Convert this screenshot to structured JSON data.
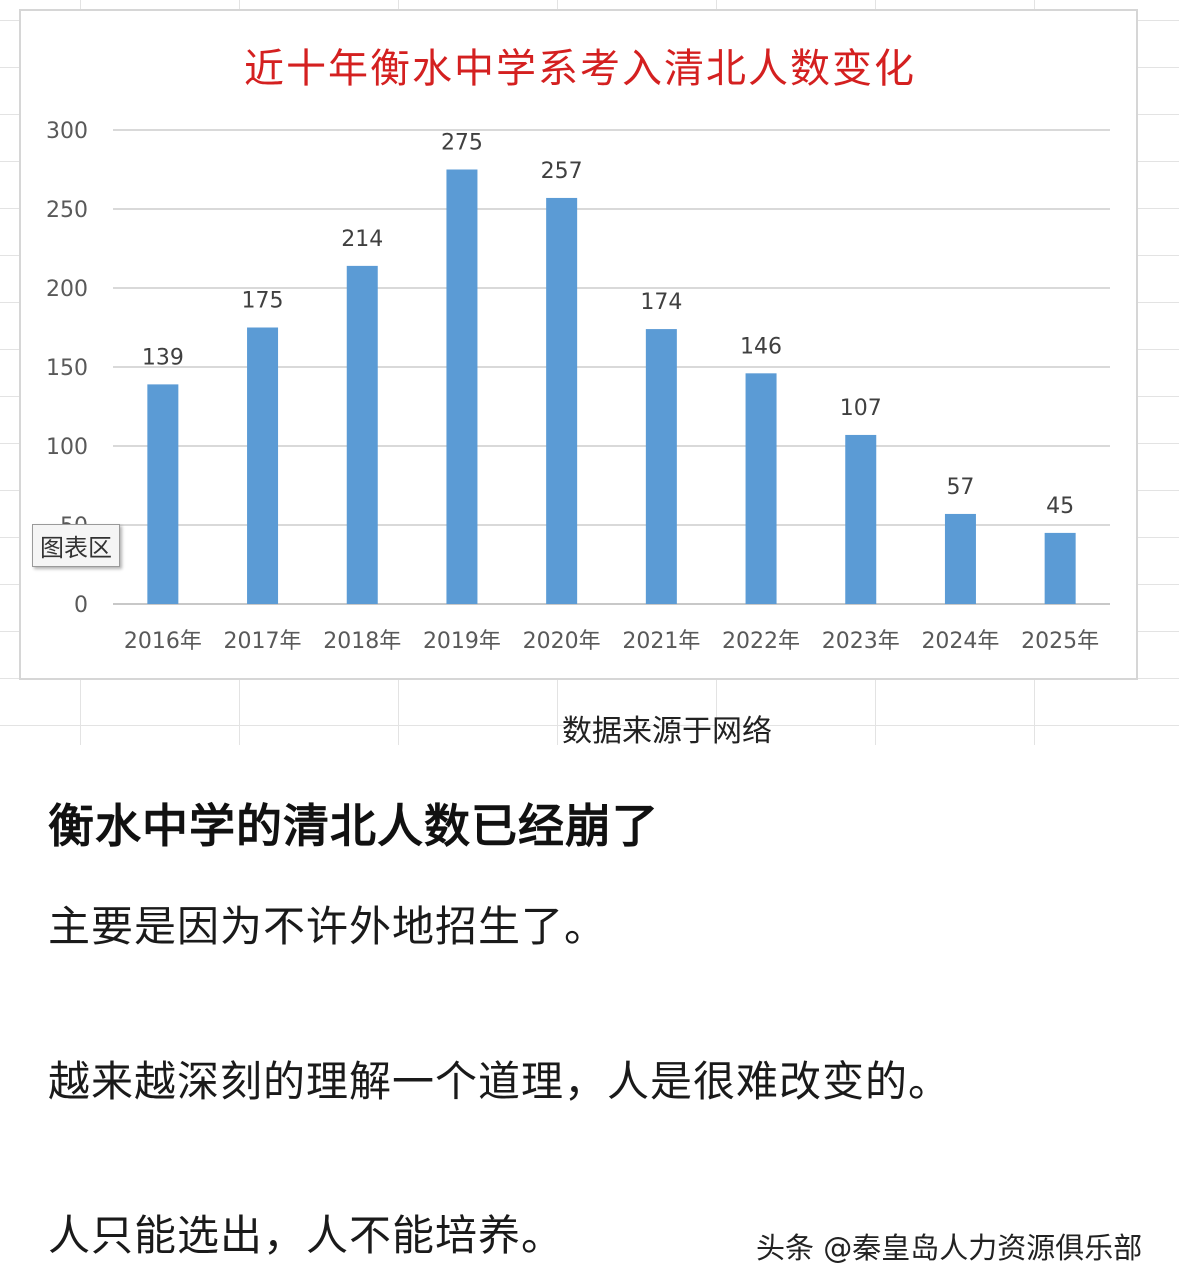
{
  "chart_data": {
    "type": "bar",
    "title": "近十年衡水中学系考入清北人数变化",
    "categories": [
      "2016年",
      "2017年",
      "2018年",
      "2019年",
      "2020年",
      "2021年",
      "2022年",
      "2023年",
      "2024年",
      "2025年"
    ],
    "values": [
      139,
      175,
      214,
      275,
      257,
      174,
      146,
      107,
      57,
      45
    ],
    "data_labels": [
      "139",
      "175",
      "214",
      "275",
      "257",
      "174",
      "146",
      "107",
      "57",
      "45"
    ],
    "y_ticks": [
      "0",
      "50",
      "100",
      "150",
      "200",
      "250",
      "300"
    ],
    "ylim": [
      0,
      300
    ],
    "grid": true,
    "legend": "none",
    "bar_color": "#5b9bd5"
  },
  "chart_tag": "图表区",
  "source_note": "数据来源于网络",
  "article": {
    "headline": "衡水中学的清北人数已经崩了",
    "paragraphs": [
      "主要是因为不许外地招生了。",
      "越来越深刻的理解一个道理，人是很难改变的。",
      "人只能选出，人不能培养。"
    ]
  },
  "watermark": "头条 @秦皇岛人力资源俱乐部"
}
